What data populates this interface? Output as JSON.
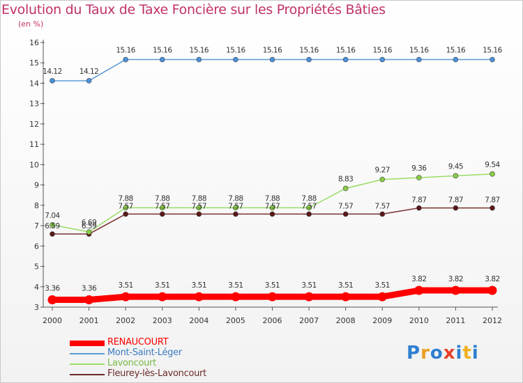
{
  "title": "Evolution du Taux de Taxe Foncière sur les Propriétés Bâties",
  "subtitle": "(en %)",
  "logo": {
    "letters": [
      "P",
      "r",
      "o",
      "x",
      "i",
      "t",
      "i"
    ],
    "colors": [
      "#2f7fd0",
      "#e8a020",
      "#2f7fd0",
      "#e8402a",
      "#2f7fd0",
      "#f0b020",
      "#2f7fd0"
    ]
  },
  "chart_data": {
    "type": "line",
    "title": "Evolution du Taux de Taxe Foncière sur les Propriétés Bâties",
    "ylabel": "(en %)",
    "xlabel": "",
    "x": [
      2000,
      2001,
      2002,
      2003,
      2004,
      2005,
      2006,
      2007,
      2008,
      2009,
      2010,
      2011,
      2012
    ],
    "ylim": [
      3,
      16
    ],
    "yticks": [
      3,
      4,
      5,
      6,
      7,
      8,
      9,
      10,
      11,
      12,
      13,
      14,
      15,
      16
    ],
    "legend_position": "bottom-left",
    "series": [
      {
        "name": "RENAUCOURT",
        "color": "#ff0000",
        "values": [
          3.36,
          3.36,
          3.51,
          3.51,
          3.51,
          3.51,
          3.51,
          3.51,
          3.51,
          3.51,
          3.82,
          3.82,
          3.82
        ]
      },
      {
        "name": "Mont-Saint-Léger",
        "color": "#5b9bd5",
        "values": [
          14.12,
          14.12,
          15.16,
          15.16,
          15.16,
          15.16,
          15.16,
          15.16,
          15.16,
          15.16,
          15.16,
          15.16,
          15.16
        ]
      },
      {
        "name": "Lavoncourt",
        "color": "#99dd66",
        "values": [
          7.04,
          6.69,
          7.88,
          7.88,
          7.88,
          7.88,
          7.88,
          7.88,
          8.83,
          9.27,
          9.36,
          9.45,
          9.54
        ]
      },
      {
        "name": "Fleurey-lès-Lavoncourt",
        "color": "#6b2a2a",
        "values": [
          6.59,
          6.59,
          7.57,
          7.57,
          7.57,
          7.57,
          7.57,
          7.57,
          7.57,
          7.57,
          7.87,
          7.87,
          7.87
        ]
      }
    ],
    "label_strings": [
      [
        "3.36",
        "3.36",
        "3.51",
        "3.51",
        "3.51",
        "3.51",
        "3.51",
        "3.51",
        "3.51",
        "3.51",
        "3.82",
        "3.82",
        "3.82"
      ],
      [
        "14.12",
        "14.12",
        "15.16",
        "15.16",
        "15.16",
        "15.16",
        "15.16",
        "15.16",
        "15.16",
        "15.16",
        "15.16",
        "15.16",
        "15.16"
      ],
      [
        "7.04",
        "6.69",
        "7.88",
        "7.88",
        "7.88",
        "7.88",
        "7.88",
        "7.88",
        "8.83",
        "9.27",
        "9.36",
        "9.45",
        "9.54"
      ],
      [
        "6.59",
        "6.59",
        "7.57",
        "7.57",
        "7.57",
        "7.57",
        "7.57",
        "7.57",
        "7.57",
        "7.57",
        "7.87",
        "7.87",
        "7.87"
      ]
    ]
  }
}
